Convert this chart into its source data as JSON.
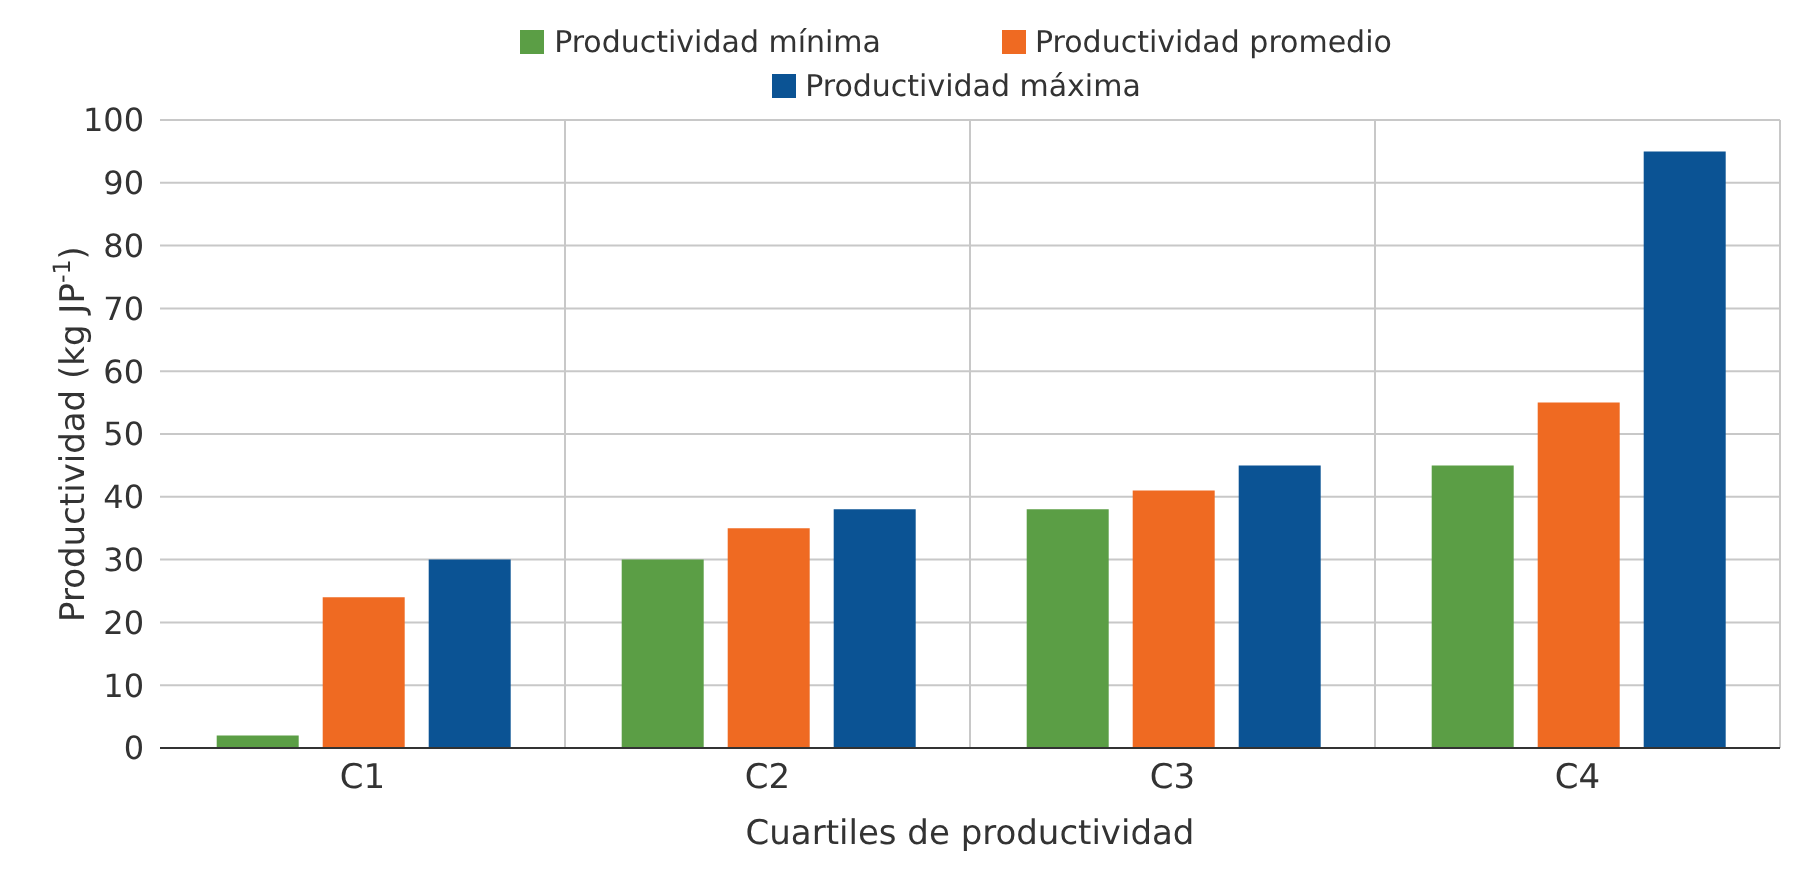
{
  "chart_data": {
    "type": "bar",
    "xlabel": "Cuartiles de productividad",
    "ylabel": "Productividad (kg JP$^{-1}$)",
    "categories": [
      "C1",
      "C2",
      "C3",
      "C4"
    ],
    "series": [
      {
        "name": "Productividad mínima",
        "color": "#5b9e45",
        "values": [
          2,
          30,
          38,
          45
        ]
      },
      {
        "name": "Productividad promedio",
        "color": "#ef6a22",
        "values": [
          24,
          35,
          41,
          55
        ]
      },
      {
        "name": "Productividad máxima",
        "color": "#0b5394",
        "values": [
          30,
          38,
          45,
          95
        ]
      }
    ],
    "ylim": [
      0,
      100
    ],
    "yticks": [
      0,
      10,
      20,
      30,
      40,
      50,
      60,
      70,
      80,
      90,
      100
    ],
    "grid": true,
    "legend": "top"
  }
}
